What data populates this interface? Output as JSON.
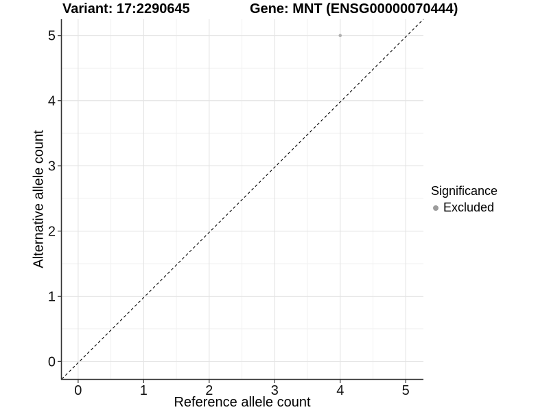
{
  "chart_data": {
    "type": "scatter",
    "titles": {
      "variant": "Variant: 17:2290645",
      "gene": "Gene: MNT (ENSG00000070444)"
    },
    "xlabel": "Reference allele count",
    "ylabel": "Alternative allele count",
    "x_ticks": [
      0,
      1,
      2,
      3,
      4,
      5
    ],
    "y_ticks": [
      0,
      1,
      2,
      3,
      4,
      5
    ],
    "x_minor": [
      0.5,
      1.5,
      2.5,
      3.5,
      4.5
    ],
    "y_minor": [
      0.5,
      1.5,
      2.5,
      3.5,
      4.5
    ],
    "xlim": [
      -0.25,
      5.27
    ],
    "ylim": [
      -0.27,
      5.25
    ],
    "grid": true,
    "points": [
      {
        "x": 4,
        "y": 5,
        "series": "Excluded"
      }
    ],
    "identity_line": {
      "equation": "y = x",
      "style": "dashed",
      "color": "#000000"
    },
    "legend": {
      "title": "Significance",
      "position": "right",
      "entries": [
        {
          "label": "Excluded",
          "color": "#9c9c9c"
        }
      ]
    },
    "colors": {
      "point": "#b0b0b0",
      "axis": "#333333",
      "grid_major": "#e3e3e3",
      "grid_minor": "#f1f1f1",
      "tick_text": "#111111"
    }
  }
}
